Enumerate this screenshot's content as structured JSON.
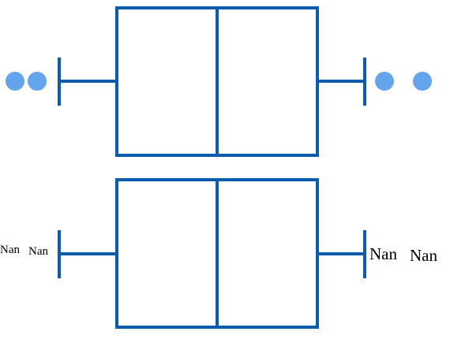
{
  "colors": {
    "stroke": "#0b5cad",
    "outlier": "#63a4ec",
    "label": "#000000"
  },
  "plots": [
    {
      "name": "boxplot-with-outlier-dots",
      "outliers": "dots",
      "left_outlier_count": 2,
      "right_outlier_count": 2
    },
    {
      "name": "boxplot-with-nan-labels",
      "outliers": "labels",
      "left_labels": [
        "Nan",
        "Nan"
      ],
      "right_labels": [
        "Nan",
        "Nan"
      ]
    }
  ]
}
